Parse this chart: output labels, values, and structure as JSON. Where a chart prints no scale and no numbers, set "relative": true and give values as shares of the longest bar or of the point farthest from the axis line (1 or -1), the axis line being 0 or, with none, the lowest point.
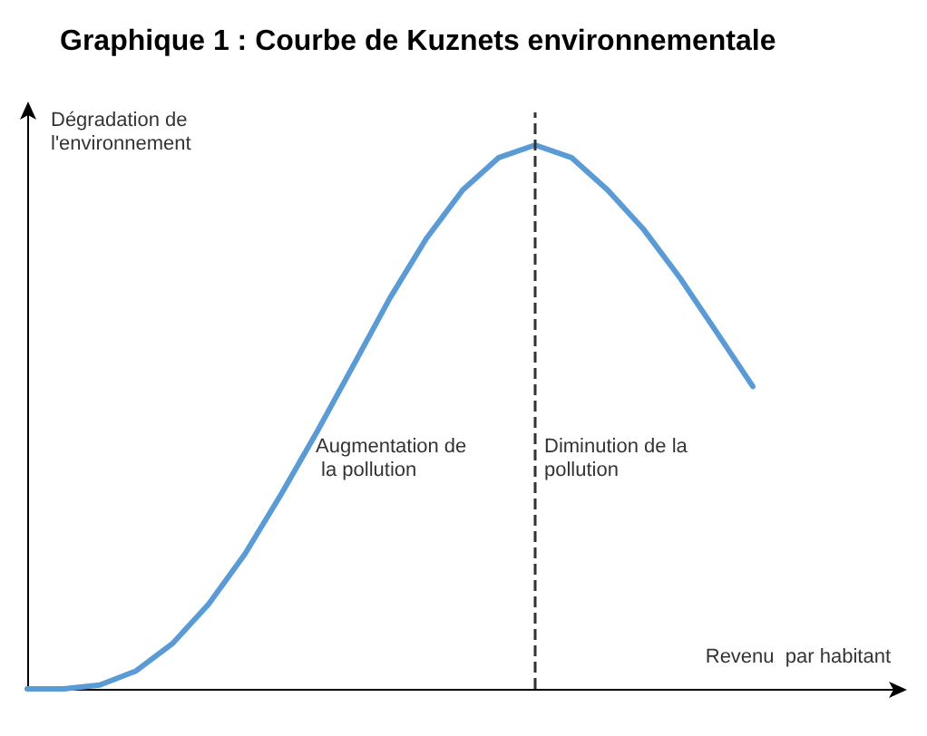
{
  "chart_data": {
    "type": "line",
    "title": "Graphique 1 : Courbe de Kuznets environnementale",
    "xlabel": "Revenu  par habitant",
    "ylabel": "Dégradation de l'environnement",
    "relative": true,
    "categories": [
      null,
      null,
      null,
      null,
      null,
      null,
      null,
      null,
      null,
      null,
      null,
      null,
      null,
      null,
      null,
      null,
      null,
      null,
      null,
      null,
      null,
      null,
      null,
      null,
      null
    ],
    "series": [
      {
        "color": "#5b9bd5",
        "values": [
          0,
          0,
          0.007,
          0.033,
          0.083,
          0.156,
          0.248,
          0.358,
          0.474,
          0.596,
          0.719,
          0.828,
          0.917,
          0.977,
          1,
          0.977,
          0.917,
          0.844,
          0.755,
          0.656,
          0.556,
          null,
          null,
          null,
          null
        ]
      }
    ],
    "annotations": [
      "Augmentation de la pollution",
      "Diminution de la pollution"
    ],
    "grid": false,
    "marker": "none",
    "line_style": "solid"
  }
}
